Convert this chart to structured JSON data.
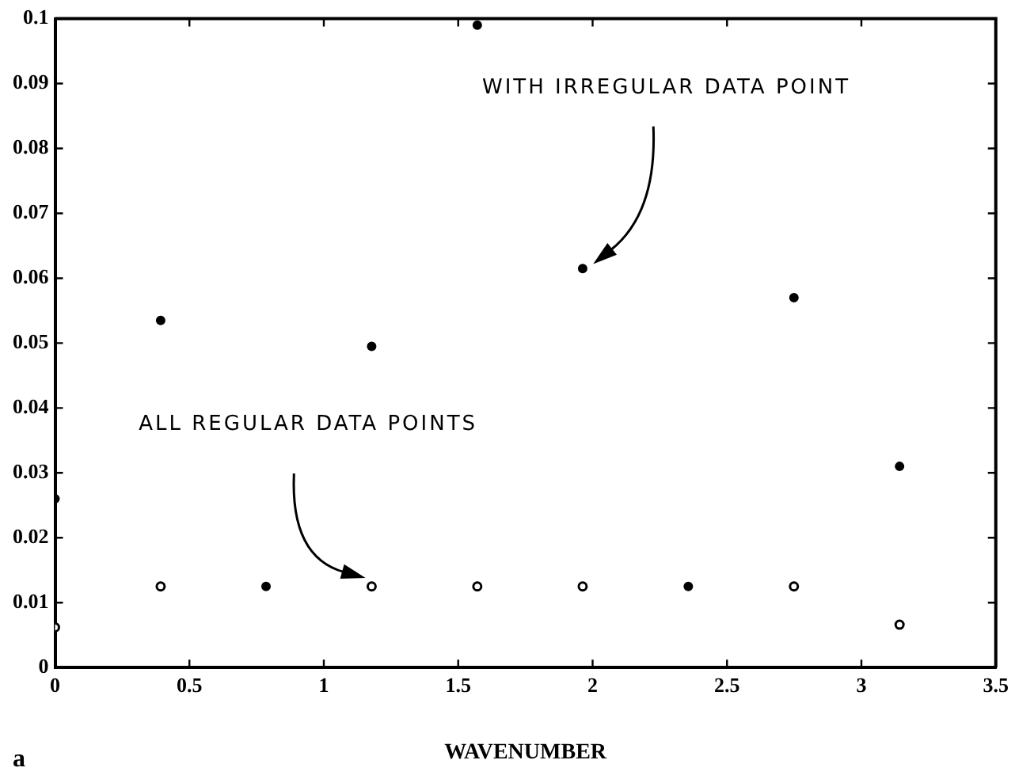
{
  "chart_data": {
    "type": "scatter",
    "xlabel": "WAVENUMBER",
    "marker": "circle",
    "x": [
      0,
      0.393,
      0.785,
      1.178,
      1.571,
      1.963,
      2.356,
      2.749,
      3.142
    ],
    "series": [
      {
        "color": "#000000",
        "values": [
          0.0062,
          0.0125,
          null,
          0.0125,
          0.0125,
          0.0125,
          null,
          0.0125,
          0.0066
        ]
      },
      {
        "color": "#000000",
        "values": [
          0.026,
          0.0535,
          0.0125,
          0.0495,
          0.099,
          0.0615,
          0.0125,
          0.057,
          0.031
        ]
      }
    ],
    "xlim": [
      0,
      3.5
    ],
    "xticks": [
      0,
      0.5,
      1,
      1.5,
      2,
      2.5,
      3,
      3.5
    ],
    "ylim": [
      0,
      0.1
    ],
    "yticks": [
      0,
      0.01,
      0.02,
      0.03,
      0.04,
      0.05,
      0.06,
      0.07,
      0.08,
      0.09,
      0.1
    ],
    "annotations": [
      "WITH IRREGULAR DATA POINT",
      "ALL REGULAR DATA POINTS",
      "a"
    ]
  }
}
